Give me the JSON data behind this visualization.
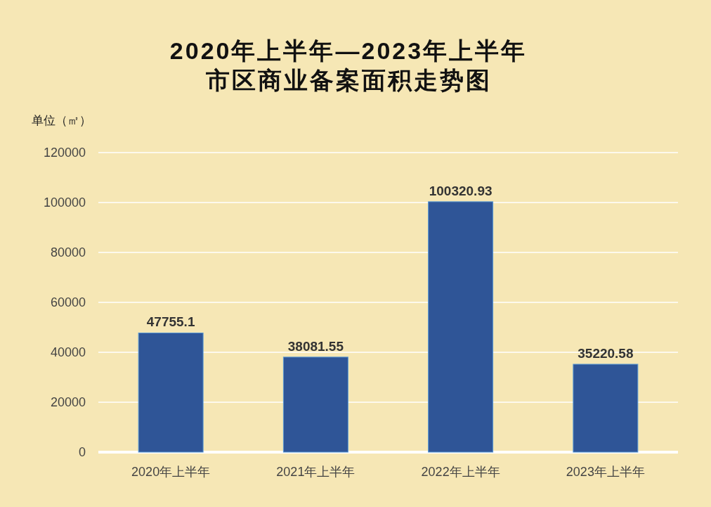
{
  "chart_data": {
    "type": "bar",
    "title": "2020年上半年—2023年上半年",
    "subtitle": "市区商业备案面积走势图",
    "ylabel": "单位（㎡）",
    "categories": [
      "2020年上半年",
      "2021年上半年",
      "2022年上半年",
      "2023年上半年"
    ],
    "values": [
      47755.1,
      38081.55,
      100320.93,
      35220.58
    ],
    "color": "#2f5597",
    "ylim": [
      0,
      120000
    ],
    "yticks": [
      0,
      20000,
      40000,
      60000,
      80000,
      100000,
      120000
    ],
    "grid": "y",
    "data_labels": true
  }
}
